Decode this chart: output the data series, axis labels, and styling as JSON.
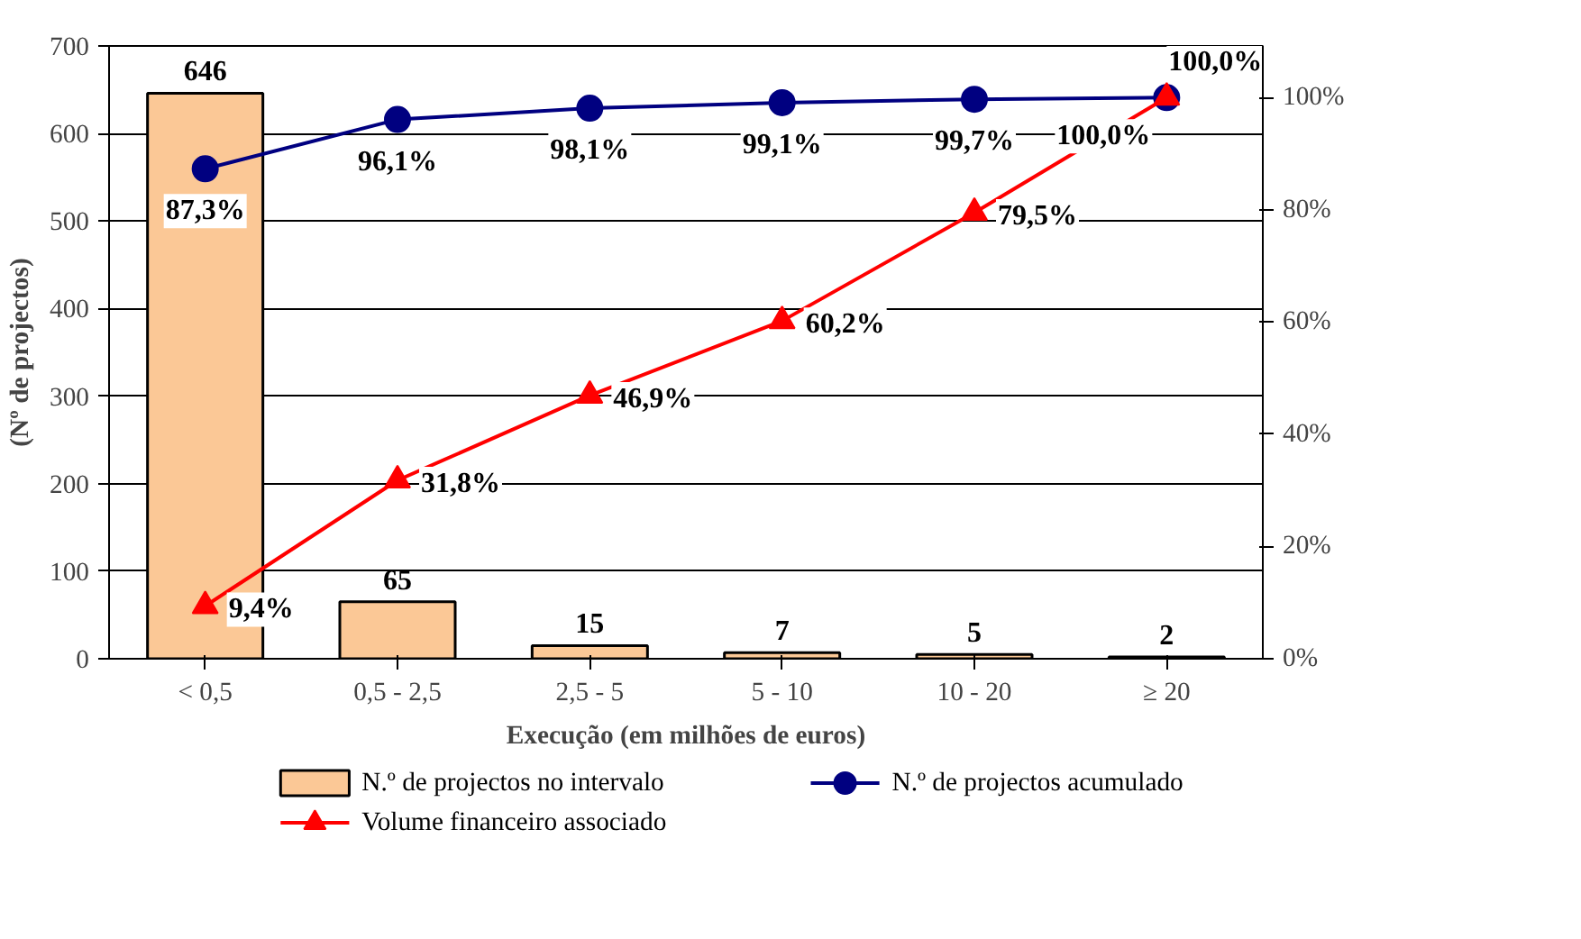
{
  "chart_data": {
    "type": "bar",
    "xlabel": "Execução (em milhões de euros)",
    "ylabel": "(Nº de projectos)",
    "categories": [
      "< 0,5",
      "0,5 - 2,5",
      "2,5 - 5",
      "5 - 10",
      "10 - 20",
      "≥ 20"
    ],
    "series": [
      {
        "name": "N.º de projectos no intervalo",
        "color": "#fbc896",
        "values": [
          646,
          65,
          15,
          7,
          5,
          2
        ],
        "value_labels": [
          "646",
          "65",
          "15",
          "7",
          "5",
          "2"
        ]
      },
      {
        "name": "N.º de projectos acumulado",
        "type": "line",
        "axis": "y2",
        "marker": "circle",
        "color": "#000080",
        "values": [
          87.3,
          96.1,
          98.1,
          99.1,
          99.7,
          100.0
        ],
        "value_labels": [
          "87,3%",
          "96,1%",
          "98,1%",
          "99,1%",
          "99,7%",
          "100,0%"
        ]
      },
      {
        "name": "Volume financeiro associado",
        "type": "line",
        "axis": "y2",
        "marker": "triangle",
        "color": "#ff0000",
        "values": [
          9.4,
          31.8,
          46.9,
          60.2,
          79.5,
          100.0
        ],
        "value_labels": [
          "9,4%",
          "31,8%",
          "46,9%",
          "60,2%",
          "79,5%",
          "100,0%"
        ]
      }
    ],
    "ylim": [
      0,
      700
    ],
    "yticks": [
      0,
      100,
      200,
      300,
      400,
      500,
      600,
      700
    ],
    "y2lim": [
      0,
      109.2
    ],
    "y2ticks": [
      {
        "value": 0,
        "label": "0%"
      },
      {
        "value": 20,
        "label": "20%"
      },
      {
        "value": 40,
        "label": "40%"
      },
      {
        "value": 60,
        "label": "60%"
      },
      {
        "value": 80,
        "label": "80%"
      },
      {
        "value": 100,
        "label": "100%"
      }
    ],
    "grid": "y",
    "legend": "bottom"
  }
}
